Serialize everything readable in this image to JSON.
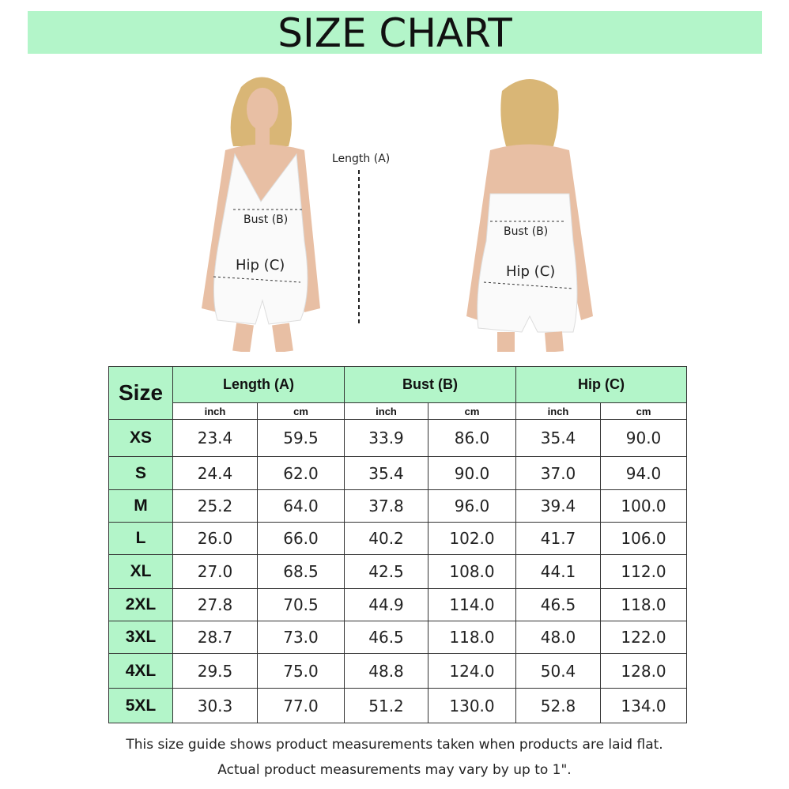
{
  "title": "SIZE CHART",
  "diagram_labels": {
    "length": "Length (A)",
    "bust_front": "Bust (B)",
    "hip_front": "Hip (C)",
    "bust_back": "Bust (B)",
    "hip_back": "Hip (C)"
  },
  "colors": {
    "header_green": "#b3f5c9"
  },
  "table": {
    "size_header": "Size",
    "groups": [
      "Length (A)",
      "Bust (B)",
      "Hip (C)"
    ],
    "units": [
      "inch",
      "cm",
      "inch",
      "cm",
      "inch",
      "cm"
    ],
    "rows": [
      {
        "size": "XS",
        "values": [
          "23.4",
          "59.5",
          "33.9",
          "86.0",
          "35.4",
          "90.0"
        ]
      },
      {
        "size": "S",
        "values": [
          "24.4",
          "62.0",
          "35.4",
          "90.0",
          "37.0",
          "94.0"
        ]
      },
      {
        "size": "M",
        "values": [
          "25.2",
          "64.0",
          "37.8",
          "96.0",
          "39.4",
          "100.0"
        ]
      },
      {
        "size": "L",
        "values": [
          "26.0",
          "66.0",
          "40.2",
          "102.0",
          "41.7",
          "106.0"
        ]
      },
      {
        "size": "XL",
        "values": [
          "27.0",
          "68.5",
          "42.5",
          "108.0",
          "44.1",
          "112.0"
        ]
      },
      {
        "size": "2XL",
        "values": [
          "27.8",
          "70.5",
          "44.9",
          "114.0",
          "46.5",
          "118.0"
        ]
      },
      {
        "size": "3XL",
        "values": [
          "28.7",
          "73.0",
          "46.5",
          "118.0",
          "48.0",
          "122.0"
        ]
      },
      {
        "size": "4XL",
        "values": [
          "29.5",
          "75.0",
          "48.8",
          "124.0",
          "50.4",
          "128.0"
        ]
      },
      {
        "size": "5XL",
        "values": [
          "30.3",
          "77.0",
          "51.2",
          "130.0",
          "52.8",
          "134.0"
        ]
      }
    ]
  },
  "notes": [
    "This size guide shows product measurements taken when products are laid flat.",
    "Actual product measurements may vary by up to 1\"."
  ]
}
